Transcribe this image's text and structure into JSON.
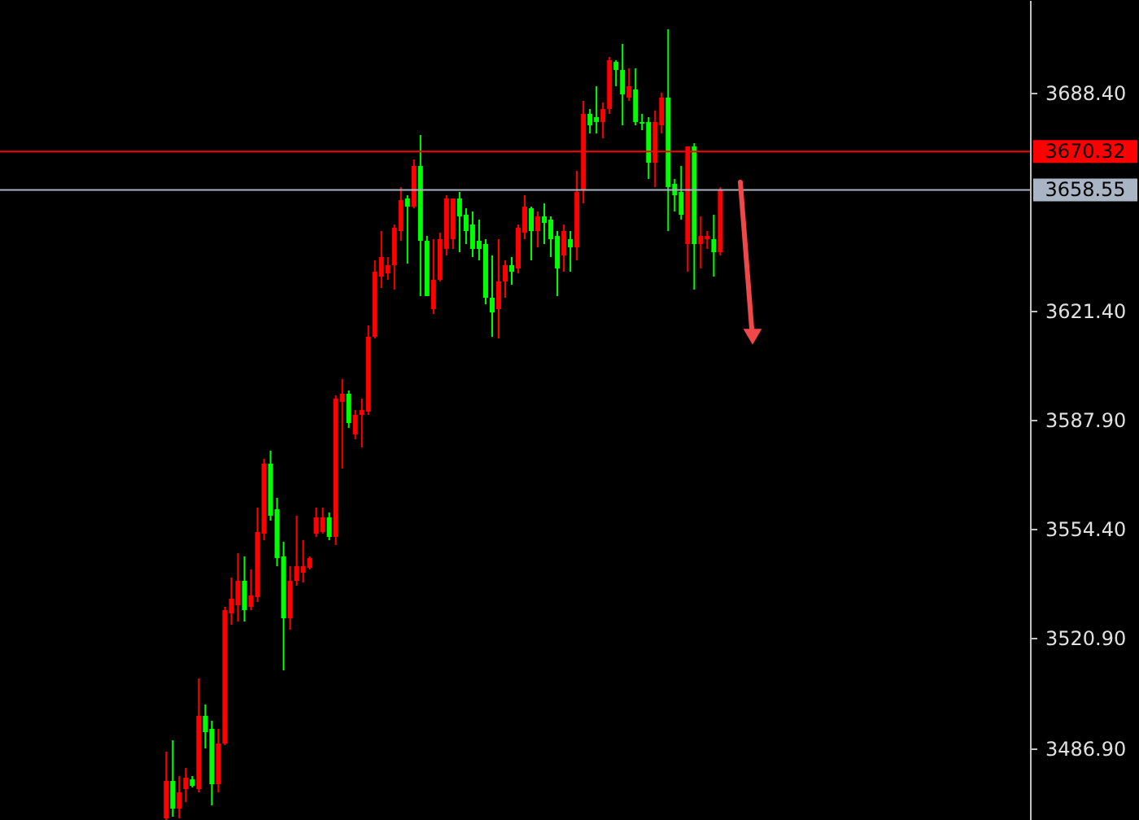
{
  "chart_data": {
    "type": "candlestick",
    "categories": [
      null,
      null,
      null,
      null,
      null,
      null,
      null,
      null,
      null,
      null,
      null,
      null,
      null,
      null,
      null,
      null,
      null,
      null,
      null,
      null,
      null,
      null,
      null,
      null,
      null,
      null,
      null,
      null,
      null,
      null,
      null,
      null,
      null,
      null,
      null,
      null,
      null,
      null,
      null,
      null,
      null,
      null,
      null,
      null,
      null,
      null,
      null,
      null,
      null,
      null,
      null,
      null,
      null,
      null,
      null,
      null,
      null,
      null,
      null,
      null,
      null,
      null,
      null,
      null,
      null,
      null,
      null,
      null,
      null,
      null,
      null,
      null,
      null,
      null,
      null,
      null,
      null,
      null,
      null,
      null,
      null,
      null,
      null,
      null,
      null,
      null,
      null,
      null,
      null,
      null,
      null,
      null,
      null,
      null,
      null,
      null,
      null,
      null,
      null,
      null,
      null,
      null,
      null,
      null,
      null,
      null,
      null,
      null,
      null,
      null,
      null,
      null,
      null,
      null,
      null,
      null,
      null,
      null,
      null,
      null,
      null,
      null,
      null,
      null,
      null,
      null,
      null,
      null,
      null,
      null,
      null,
      null,
      null,
      null,
      null,
      null,
      null,
      null,
      null,
      null,
      null,
      null,
      null,
      null,
      null,
      null,
      null,
      null,
      null,
      null,
      null,
      null,
      null,
      null,
      null,
      null,
      null,
      null
    ],
    "ohlc": [
      null,
      null,
      null,
      null,
      null,
      null,
      null,
      null,
      null,
      null,
      null,
      null,
      null,
      null,
      null,
      null,
      null,
      null,
      null,
      null,
      null,
      null,
      null,
      null,
      null,
      [
        3465.4,
        3485.9,
        3464.9,
        3476.9
      ],
      [
        3476.9,
        3489.4,
        3465.9,
        3468.4
      ],
      [
        3468.4,
        3478.4,
        3465.4,
        3473.4
      ],
      [
        3474.4,
        3480.9,
        3470.4,
        3477.9
      ],
      [
        3477.4,
        3478.4,
        3474.9,
        3475.4
      ],
      [
        3474.4,
        3508.4,
        3473.4,
        3496.9
      ],
      [
        3496.9,
        3500.4,
        3486.9,
        3491.9
      ],
      [
        3492.9,
        3495.4,
        3469.4,
        3475.9
      ],
      [
        3475.9,
        3492.9,
        3473.4,
        3488.4
      ],
      [
        3488.4,
        3530.4,
        3487.9,
        3529.4
      ],
      [
        3528.4,
        3539.4,
        3524.9,
        3532.9
      ],
      [
        3530.9,
        3546.9,
        3525.9,
        3538.4
      ],
      [
        3538.4,
        3545.9,
        3525.9,
        3529.4
      ],
      [
        3530.4,
        3541.9,
        3529.4,
        3533.9
      ],
      [
        3533.4,
        3560.9,
        3531.9,
        3553.4
      ],
      [
        3552.9,
        3575.9,
        3550.9,
        3574.4
      ],
      [
        3574.4,
        3578.4,
        3556.9,
        3558.4
      ],
      [
        3560.4,
        3563.9,
        3542.9,
        3545.4
      ],
      [
        3545.9,
        3550.4,
        3510.9,
        3526.9
      ],
      [
        3526.9,
        3542.9,
        3523.4,
        3538.4
      ],
      [
        3538.4,
        3558.4,
        3536.9,
        3542.9
      ],
      [
        3540.9,
        3550.9,
        3537.9,
        3542.9
      ],
      [
        3542.4,
        3545.9,
        3541.9,
        3545.4
      ],
      [
        3552.9,
        3560.9,
        3551.9,
        3557.9
      ],
      [
        3553.4,
        3560.9,
        3552.9,
        3557.9
      ],
      [
        3557.9,
        3559.4,
        3550.9,
        3551.9
      ],
      [
        3551.9,
        3595.4,
        3549.4,
        3594.4
      ],
      [
        3593.4,
        3600.4,
        3572.9,
        3595.9
      ],
      [
        3595.9,
        3596.9,
        3585.4,
        3586.9
      ],
      [
        3583.4,
        3590.9,
        3581.9,
        3589.4
      ],
      [
        3589.4,
        3594.4,
        3579.4,
        3590.9
      ],
      [
        3590.4,
        3616.9,
        3589.4,
        3613.4
      ],
      [
        3613.4,
        3636.9,
        3612.9,
        3633.4
      ],
      [
        3631.9,
        3645.9,
        3628.4,
        3637.9
      ],
      [
        3632.9,
        3637.9,
        3630.9,
        3635.4
      ],
      [
        3635.4,
        3647.9,
        3627.9,
        3646.9
      ],
      [
        3645.9,
        3659.4,
        3642.9,
        3655.4
      ],
      [
        3655.9,
        3656.9,
        3635.9,
        3653.4
      ],
      [
        3653.4,
        3667.9,
        3652.9,
        3665.9
      ],
      [
        3665.9,
        3675.4,
        3625.9,
        3642.9
      ],
      [
        3642.9,
        3644.4,
        3625.9,
        3625.9
      ],
      [
        3621.9,
        3643.4,
        3620.4,
        3630.9
      ],
      [
        3630.9,
        3645.4,
        3630.4,
        3643.4
      ],
      [
        3640.4,
        3656.9,
        3638.4,
        3655.9
      ],
      [
        3643.4,
        3655.9,
        3640.4,
        3655.9
      ],
      [
        3655.9,
        3657.9,
        3639.4,
        3650.4
      ],
      [
        3650.9,
        3652.9,
        3641.9,
        3645.9
      ],
      [
        3647.9,
        3651.9,
        3637.9,
        3640.4
      ],
      [
        3642.9,
        3649.4,
        3636.9,
        3640.4
      ],
      [
        3641.9,
        3643.4,
        3623.4,
        3625.4
      ],
      [
        3625.4,
        3638.4,
        3613.4,
        3620.9
      ],
      [
        3621.9,
        3643.4,
        3612.9,
        3630.4
      ],
      [
        3630.4,
        3636.9,
        3625.4,
        3635.4
      ],
      [
        3635.4,
        3637.9,
        3629.4,
        3633.4
      ],
      [
        3634.4,
        3647.9,
        3632.9,
        3646.9
      ],
      [
        3645.4,
        3656.9,
        3643.4,
        3653.4
      ],
      [
        3652.9,
        3653.4,
        3636.9,
        3645.9
      ],
      [
        3645.9,
        3651.9,
        3640.9,
        3650.4
      ],
      [
        3650.4,
        3654.4,
        3641.9,
        3648.4
      ],
      [
        3649.4,
        3650.4,
        3637.9,
        3643.4
      ],
      [
        3644.4,
        3645.9,
        3625.9,
        3634.4
      ],
      [
        3638.4,
        3647.9,
        3633.4,
        3645.9
      ],
      [
        3643.4,
        3645.9,
        3633.4,
        3640.9
      ],
      [
        3640.9,
        3664.4,
        3636.9,
        3657.9
      ],
      [
        3658.4,
        3685.9,
        3654.4,
        3681.9
      ],
      [
        3681.9,
        3683.4,
        3675.9,
        3678.4
      ],
      [
        3680.9,
        3690.4,
        3675.9,
        3679.4
      ],
      [
        3679.4,
        3685.4,
        3674.4,
        3683.4
      ],
      [
        3683.4,
        3699.4,
        3681.9,
        3698.4
      ],
      [
        3697.9,
        3698.4,
        3690.4,
        3695.4
      ],
      [
        3695.4,
        3703.4,
        3678.4,
        3687.9
      ],
      [
        3686.9,
        3695.9,
        3685.9,
        3690.4
      ],
      [
        3689.4,
        3695.9,
        3678.4,
        3679.4
      ],
      [
        3679.4,
        3681.9,
        3676.9,
        3678.9
      ],
      [
        3679.4,
        3680.9,
        3661.9,
        3666.9
      ],
      [
        3666.9,
        3682.9,
        3659.4,
        3679.4
      ],
      [
        3678.4,
        3688.4,
        3675.9,
        3686.9
      ],
      [
        3686.9,
        3707.9,
        3645.9,
        3659.4
      ],
      [
        3660.4,
        3661.9,
        3651.9,
        3656.9
      ],
      [
        3657.9,
        3665.9,
        3649.4,
        3650.9
      ],
      [
        3641.9,
        3671.9,
        3633.4,
        3671.9
      ],
      [
        3671.9,
        3672.9,
        3627.9,
        3641.9
      ],
      [
        3641.9,
        3650.4,
        3634.4,
        3644.4
      ],
      [
        3643.4,
        3645.9,
        3640.4,
        3644.4
      ],
      [
        3643.4,
        3650.9,
        3631.9,
        3639.4
      ],
      [
        3639.4,
        3659.4,
        3638.4,
        3658.4
      ],
      null,
      null,
      null,
      null,
      null,
      null,
      null,
      null,
      null,
      null,
      null,
      null,
      null,
      null,
      null,
      null,
      null,
      null,
      null,
      null,
      null,
      null,
      null,
      null,
      null,
      null,
      null,
      null,
      null,
      null,
      null,
      null,
      null,
      null,
      null,
      null,
      null,
      null,
      null,
      null,
      null,
      null,
      null,
      null,
      null,
      null,
      null
    ],
    "colors": [
      null,
      null,
      null,
      null,
      null,
      null,
      null,
      null,
      null,
      null,
      null,
      null,
      null,
      null,
      null,
      null,
      null,
      null,
      null,
      null,
      null,
      null,
      null,
      null,
      null,
      "#ff0000",
      "#00ff00",
      "#ff0000",
      "#ff0000",
      "#00ff00",
      "#ff0000",
      "#00ff00",
      "#00ff00",
      "#ff0000",
      "#ff0000",
      "#ff0000",
      "#ff0000",
      "#00ff00",
      "#ff0000",
      "#ff0000",
      "#ff0000",
      "#00ff00",
      "#00ff00",
      "#00ff00",
      "#ff0000",
      "#ff0000",
      "#ff0000",
      "#ff0000",
      "#ff0000",
      "#ff0000",
      "#00ff00",
      "#ff0000",
      "#ff0000",
      "#00ff00",
      "#ff0000",
      "#ff0000",
      "#ff0000",
      "#ff0000",
      "#ff0000",
      "#ff0000",
      "#ff0000",
      "#ff0000",
      "#00ff00",
      "#ff0000",
      "#00ff00",
      "#00ff00",
      "#ff0000",
      "#ff0000",
      "#ff0000",
      "#ff0000",
      "#00ff00",
      "#00ff00",
      "#00ff00",
      "#00ff00",
      "#00ff00",
      "#00ff00",
      "#ff0000",
      "#ff0000",
      "#00ff00",
      "#ff0000",
      "#ff0000",
      "#00ff00",
      "#ff0000",
      "#00ff00",
      "#00ff00",
      "#00ff00",
      "#ff0000",
      "#00ff00",
      "#ff0000",
      "#ff0000",
      "#00ff00",
      "#00ff00",
      "#ff0000",
      "#ff0000",
      "#00ff00",
      "#00ff00",
      "#ff0000",
      "#00ff00",
      "#00ff00",
      "#00ff00",
      "#ff0000",
      "#ff0000",
      "#00ff00",
      "#00ff00",
      "#00ff00",
      "#ff0000",
      "#00ff00",
      "#ff0000",
      "#ff0000",
      "#00ff00",
      "#ff0000",
      null,
      null,
      null,
      null,
      null,
      null,
      null,
      null,
      null,
      null,
      null,
      null,
      null,
      null,
      null,
      null,
      null,
      null,
      null,
      null,
      null,
      null,
      null,
      null,
      null,
      null,
      null,
      null,
      null,
      null,
      null,
      null,
      null,
      null,
      null,
      null,
      null,
      null,
      null,
      null,
      null,
      null,
      null,
      null,
      null,
      null,
      null
    ],
    "ylim": [
      3464.9,
      3716.9
    ],
    "yticks": [
      {
        "value": 3688.4,
        "label": "3688.40"
      },
      {
        "value": 3621.4,
        "label": "3621.40"
      },
      {
        "value": 3587.9,
        "label": "3587.90"
      },
      {
        "value": 3554.4,
        "label": "3554.40"
      },
      {
        "value": 3520.9,
        "label": "3520.90"
      },
      {
        "value": 3486.9,
        "label": "3486.90"
      }
    ],
    "tick_labels": "y",
    "ref_lines": [
      {
        "axis": "y",
        "value": 3670.32,
        "label": "3670.32",
        "color": "#ff0000"
      },
      {
        "axis": "y",
        "value": 3658.55,
        "label": "3658.55",
        "color": "#a9b4c4"
      }
    ]
  }
}
